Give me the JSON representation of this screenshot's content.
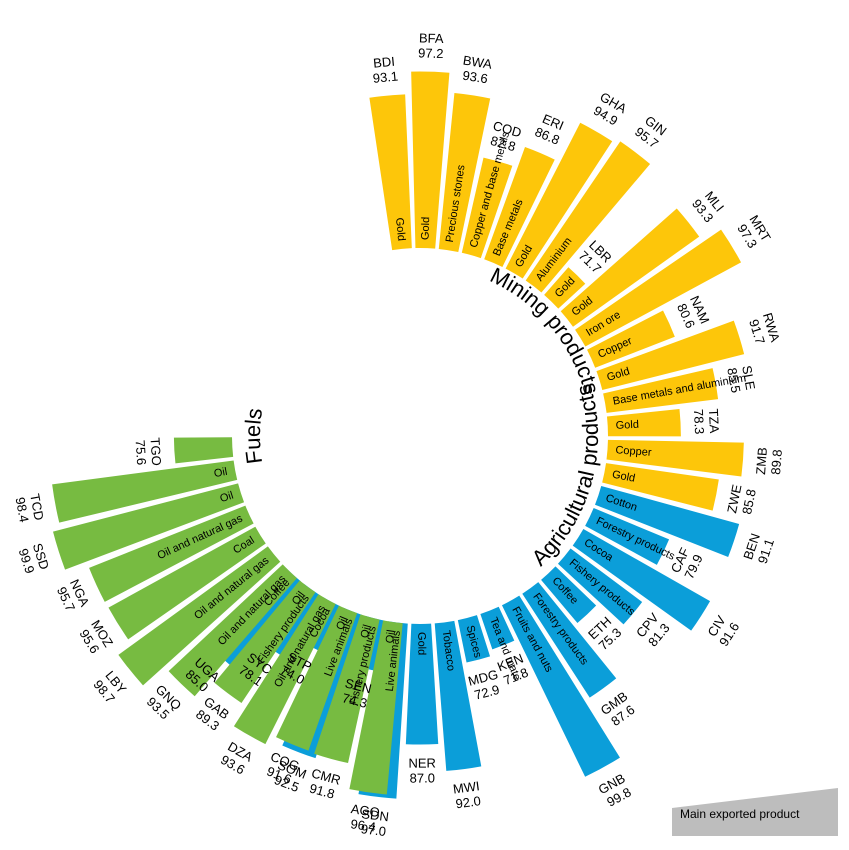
{
  "colors": {
    "Fuels": "#77bb41",
    "Mining products": "#fdc60a",
    "Agricultural products": "#0b9ed9",
    "legend": "#bdbdbd"
  },
  "legend": {
    "label": "Main exported product"
  },
  "chart_data": {
    "type": "radial-bar",
    "groups": [
      {
        "name": "Mining products",
        "items": [
          {
            "code": "BDI",
            "value": 93.1,
            "product": "Gold"
          },
          {
            "code": "BFA",
            "value": 97.2,
            "product": "Gold"
          },
          {
            "code": "BWA",
            "value": 93.6,
            "product": "Precious stones"
          },
          {
            "code": "COD",
            "value": 82.8,
            "product": "Copper and base metals"
          },
          {
            "code": "ERI",
            "value": 86.8,
            "product": "Base metals"
          },
          {
            "code": "GHA",
            "value": 94.9,
            "product": "Gold"
          },
          {
            "code": "GIN",
            "value": 95.7,
            "product": "Aluminium"
          },
          {
            "code": "LBR",
            "value": 71.7,
            "product": "Gold"
          },
          {
            "code": "MLI",
            "value": 93.3,
            "product": "Gold"
          },
          {
            "code": "MRT",
            "value": 97.3,
            "product": "Iron ore"
          },
          {
            "code": "NAM",
            "value": 80.6,
            "product": "Copper"
          },
          {
            "code": "RWA",
            "value": 91.7,
            "product": "Gold"
          },
          {
            "code": "SLE",
            "value": 85.5,
            "product": "Base metals and aluminium"
          },
          {
            "code": "TZA",
            "value": 78.3,
            "product": "Gold"
          },
          {
            "code": "ZMB",
            "value": 89.8,
            "product": "Copper"
          },
          {
            "code": "ZWE",
            "value": 85.8,
            "product": "Gold"
          }
        ]
      },
      {
        "name": "Agricultural products",
        "items": [
          {
            "code": "BEN",
            "value": 91.1,
            "product": "Cotton"
          },
          {
            "code": "CAF",
            "value": 79.9,
            "product": "Forestry products"
          },
          {
            "code": "CIV",
            "value": 91.6,
            "product": "Cocoa"
          },
          {
            "code": "CPV",
            "value": 81.3,
            "product": "Fishery products"
          },
          {
            "code": "ETH",
            "value": 75.3,
            "product": "Coffee"
          },
          {
            "code": "GMB",
            "value": 87.6,
            "product": "Forestry products"
          },
          {
            "code": "GNB",
            "value": 99.8,
            "product": "Fruits and nuts"
          },
          {
            "code": "KEN",
            "value": 71.8,
            "product": "Tea and mate"
          },
          {
            "code": "MDG",
            "value": 72.9,
            "product": "Spices"
          },
          {
            "code": "MWI",
            "value": 92.0,
            "product": "Tobacco"
          },
          {
            "code": "NER",
            "value": 87.0,
            "product": "Gold"
          },
          {
            "code": "SDN",
            "value": 97.0,
            "product": "Live animals"
          },
          {
            "code": "SEN",
            "value": 74.3,
            "product": "Fishery products"
          },
          {
            "code": "SOM",
            "value": 92.5,
            "product": "Live animals"
          },
          {
            "code": "STP",
            "value": 74.0,
            "product": "Cocoa"
          },
          {
            "code": "SYC",
            "value": 78.1,
            "product": "Fishery products"
          },
          {
            "code": "UGA",
            "value": 85.0,
            "product": "Coffee"
          }
        ]
      },
      {
        "name": "Fuels",
        "items": [
          {
            "code": "AGO",
            "value": 96.4,
            "product": "Oil"
          },
          {
            "code": "CMR",
            "value": 91.8,
            "product": "Oil"
          },
          {
            "code": "COG",
            "value": 91.6,
            "product": "Oil"
          },
          {
            "code": "DZA",
            "value": 93.6,
            "product": "Oil and natural gas"
          },
          {
            "code": "GAB",
            "value": 89.3,
            "product": "Oil"
          },
          {
            "code": "GNQ",
            "value": 93.5,
            "product": "Oil and natural gas"
          },
          {
            "code": "LBY",
            "value": 98.7,
            "product": "Oil and natural gas"
          },
          {
            "code": "MOZ",
            "value": 95.6,
            "product": "Coal"
          },
          {
            "code": "NGA",
            "value": 95.7,
            "product": "Oil and natural gas"
          },
          {
            "code": "SSD",
            "value": 99.9,
            "product": "Oil"
          },
          {
            "code": "TCD",
            "value": 98.4,
            "product": "Oil"
          },
          {
            "code": "TGO",
            "value": 75.6,
            "product": ""
          }
        ]
      }
    ]
  }
}
